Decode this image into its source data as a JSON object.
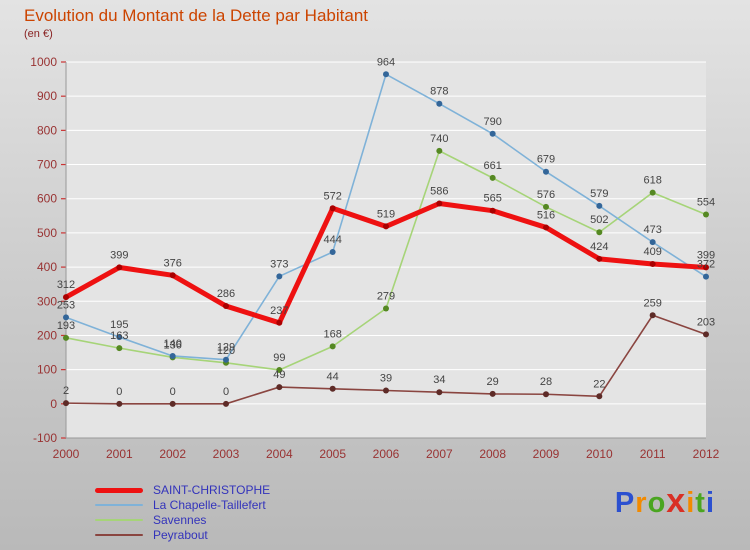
{
  "header": {
    "title": "Evolution du Montant de la Dette par Habitant",
    "subtitle": "(en €)"
  },
  "colors": {
    "title_text": "#cc4400",
    "axis_text": "#993333",
    "tick_mark": "#cc3333",
    "gridline": "#ffffff",
    "plot_background": "#e4e4e4",
    "data_label": "#444444",
    "legend_text": "#3333bb"
  },
  "chart_data": {
    "type": "line",
    "x": [
      "2000",
      "2001",
      "2002",
      "2003",
      "2004",
      "2005",
      "2006",
      "2007",
      "2008",
      "2009",
      "2010",
      "2011",
      "2012"
    ],
    "ylim": [
      -100,
      1000
    ],
    "ytick_step": 100,
    "grid": true,
    "legend_position": "bottom-left",
    "series": [
      {
        "name": "SAINT-CHRISTOPHE",
        "color": "#ee1111",
        "dot": "#aa0000",
        "width": 5,
        "legend_thickness": 5,
        "values": [
          312,
          399,
          376,
          286,
          237,
          572,
          519,
          586,
          565,
          516,
          424,
          409,
          399
        ]
      },
      {
        "name": "La Chapelle-Taillefert",
        "color": "#7fb2d8",
        "dot": "#336699",
        "width": 1.6,
        "legend_thickness": 2,
        "values": [
          253,
          195,
          140,
          129,
          373,
          444,
          964,
          878,
          790,
          679,
          579,
          473,
          372
        ]
      },
      {
        "name": "Savennes",
        "color": "#a6d478",
        "dot": "#558822",
        "width": 1.6,
        "legend_thickness": 2,
        "values": [
          193,
          163,
          136,
          120,
          99,
          168,
          279,
          740,
          661,
          576,
          502,
          618,
          554
        ]
      },
      {
        "name": "Peyrabout",
        "color": "#8a4540",
        "dot": "#5e2b27",
        "width": 1.6,
        "legend_thickness": 2,
        "values": [
          2,
          0,
          0,
          0,
          49,
          44,
          39,
          34,
          29,
          28,
          22,
          259,
          203
        ]
      }
    ]
  },
  "logo": {
    "name": "Proxiti",
    "letters": [
      {
        "ch": "P",
        "color": "#2b50d0",
        "big": false
      },
      {
        "ch": "r",
        "color": "#f28a00",
        "big": false
      },
      {
        "ch": "o",
        "color": "#4aa520",
        "big": false
      },
      {
        "ch": "x",
        "color": "#d93025",
        "big": true
      },
      {
        "ch": "i",
        "color": "#f28a00",
        "big": false
      },
      {
        "ch": "t",
        "color": "#4aa520",
        "big": false
      },
      {
        "ch": "i",
        "color": "#2b50d0",
        "big": false
      }
    ]
  }
}
